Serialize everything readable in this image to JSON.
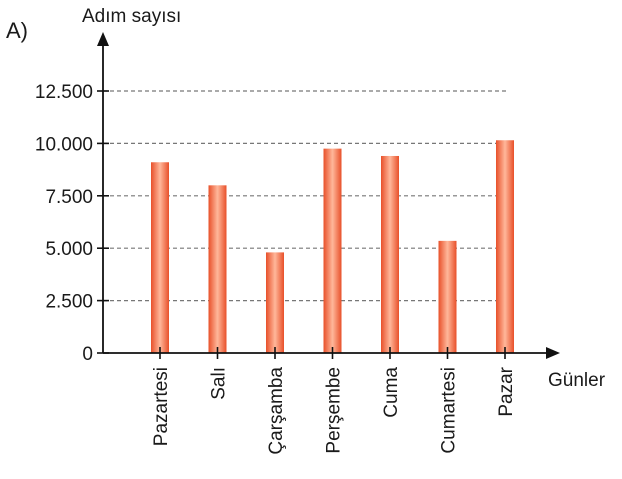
{
  "panel_label": "A)",
  "chart_data": {
    "type": "bar",
    "title": "",
    "xlabel": "Günler",
    "ylabel": "Adım sayısı",
    "categories": [
      "Pazartesi",
      "Salı",
      "Çarşamba",
      "Perşembe",
      "Cuma",
      "Cumartesi",
      "Pazar"
    ],
    "values": [
      9100,
      8000,
      4800,
      9750,
      9400,
      5350,
      10150
    ],
    "ylim": [
      0,
      12500
    ],
    "yticks": [
      0,
      2500,
      5000,
      7500,
      10000,
      12500
    ],
    "ytick_labels": [
      "0",
      "2.500",
      "5.000",
      "7.500",
      "10.000",
      "12.500"
    ],
    "grid": "dashed horizontal",
    "colors": {
      "bar_edge": "#e8502a",
      "bar_mid": "#ffb79a",
      "grid": "#777777",
      "axis": "#111111"
    }
  }
}
